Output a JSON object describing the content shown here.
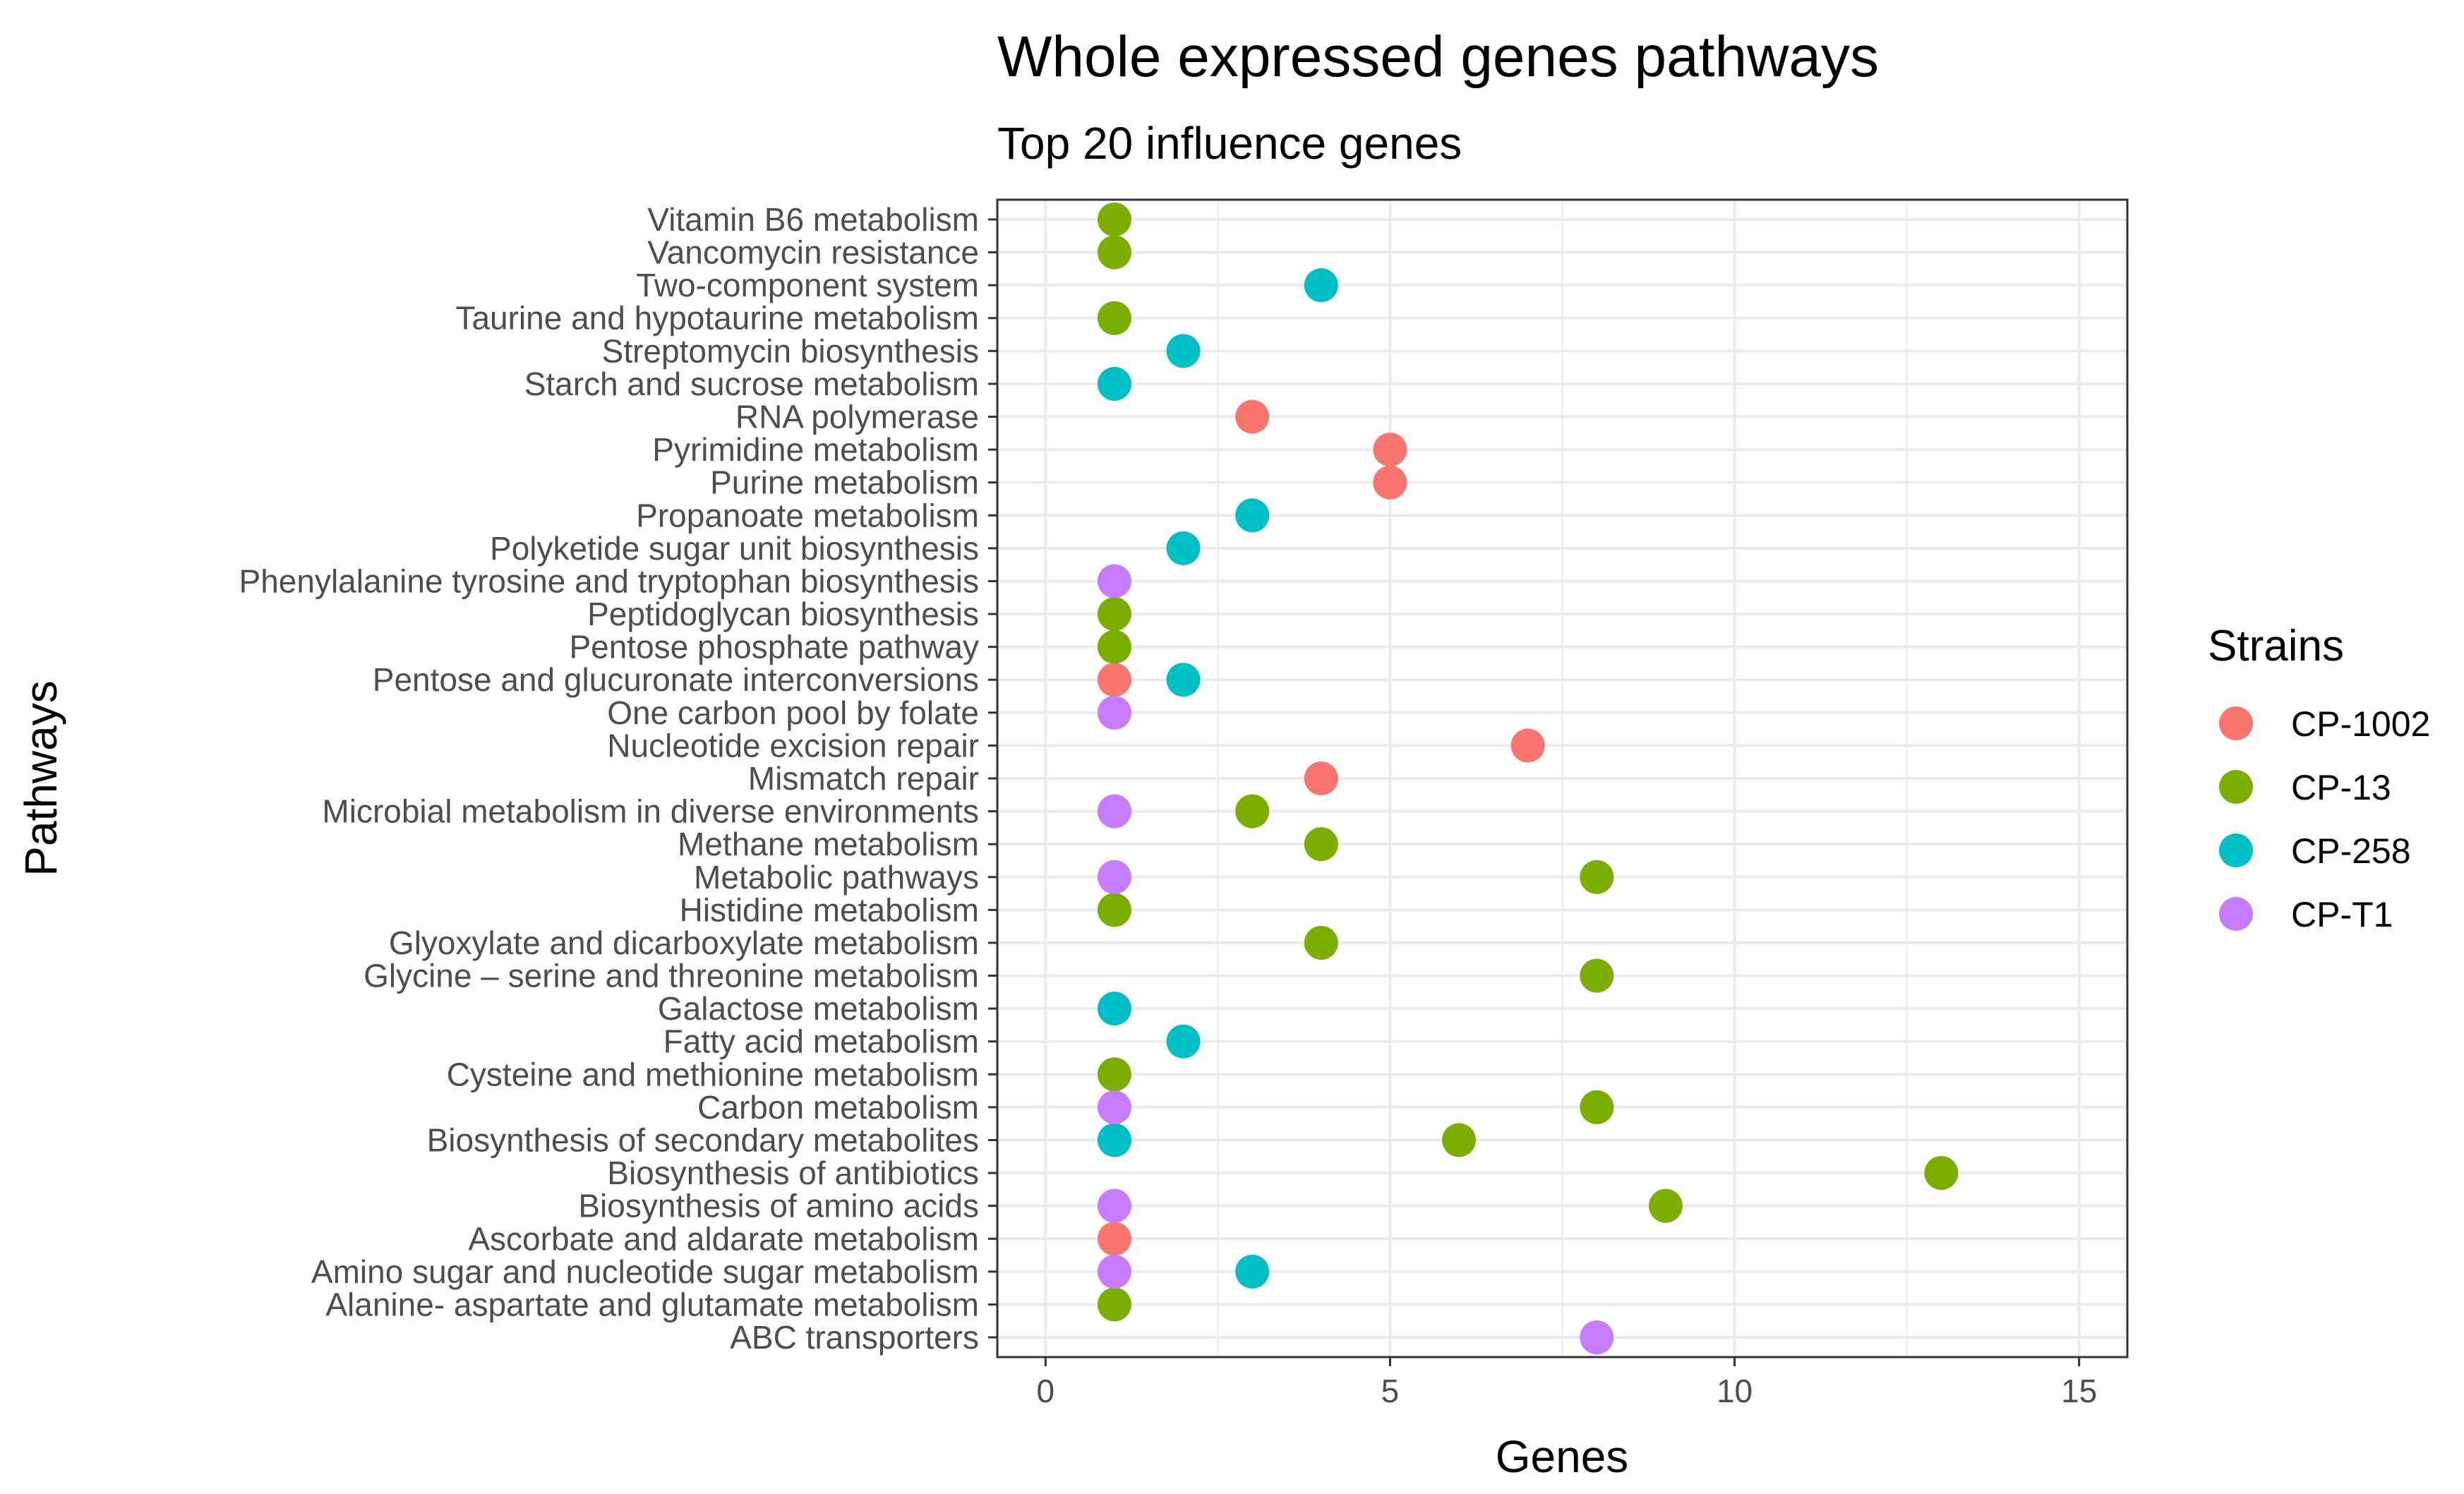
{
  "chart_data": {
    "type": "scatter",
    "title": "Whole expressed genes pathways",
    "subtitle": "Top 20 influence genes",
    "xlabel": "Genes",
    "ylabel": "Pathways",
    "xlim": [
      -0.7,
      15.7
    ],
    "xticks": [
      0,
      5,
      10,
      15
    ],
    "grid": true,
    "legend_position": "right",
    "legend": {
      "title": "Strains",
      "entries": [
        {
          "name": "CP-1002",
          "color": "#F8766D"
        },
        {
          "name": "CP-13",
          "color": "#7CAE00"
        },
        {
          "name": "CP-258",
          "color": "#00BFC4"
        },
        {
          "name": "CP-T1",
          "color": "#C77CFF"
        }
      ]
    },
    "categories": [
      "ABC transporters",
      "Alanine- aspartate and glutamate metabolism",
      "Amino sugar and nucleotide sugar metabolism",
      "Ascorbate and aldarate metabolism",
      "Biosynthesis of amino acids",
      "Biosynthesis of antibiotics",
      "Biosynthesis of secondary metabolites",
      "Carbon metabolism",
      "Cysteine and methionine metabolism",
      "Fatty acid metabolism",
      "Galactose metabolism",
      "Glycine – serine and threonine metabolism",
      "Glyoxylate and dicarboxylate metabolism",
      "Histidine metabolism",
      "Metabolic pathways",
      "Methane metabolism",
      "Microbial metabolism in diverse environments",
      "Mismatch repair",
      "Nucleotide excision repair",
      "One carbon pool by folate",
      "Pentose and glucuronate interconversions",
      "Pentose phosphate pathway",
      "Peptidoglycan biosynthesis",
      "Phenylalanine tyrosine and tryptophan biosynthesis",
      "Polyketide sugar unit biosynthesis",
      "Propanoate metabolism",
      "Purine metabolism",
      "Pyrimidine metabolism",
      "RNA polymerase",
      "Starch and sucrose metabolism",
      "Streptomycin biosynthesis",
      "Taurine and hypotaurine metabolism",
      "Two-component system",
      "Vancomycin resistance",
      "Vitamin B6 metabolism"
    ],
    "series": [
      {
        "name": "CP-1002",
        "points": [
          {
            "pathway": "Ascorbate and aldarate metabolism",
            "genes": 1
          },
          {
            "pathway": "Mismatch repair",
            "genes": 4
          },
          {
            "pathway": "Nucleotide excision repair",
            "genes": 7
          },
          {
            "pathway": "Pentose and glucuronate interconversions",
            "genes": 1
          },
          {
            "pathway": "Purine metabolism",
            "genes": 5
          },
          {
            "pathway": "Pyrimidine metabolism",
            "genes": 5
          },
          {
            "pathway": "RNA polymerase",
            "genes": 3
          }
        ]
      },
      {
        "name": "CP-13",
        "points": [
          {
            "pathway": "Alanine- aspartate and glutamate metabolism",
            "genes": 1
          },
          {
            "pathway": "Biosynthesis of amino acids",
            "genes": 9
          },
          {
            "pathway": "Biosynthesis of antibiotics",
            "genes": 13
          },
          {
            "pathway": "Biosynthesis of secondary metabolites",
            "genes": 6
          },
          {
            "pathway": "Carbon metabolism",
            "genes": 8
          },
          {
            "pathway": "Cysteine and methionine metabolism",
            "genes": 1
          },
          {
            "pathway": "Glycine – serine and threonine metabolism",
            "genes": 8
          },
          {
            "pathway": "Glyoxylate and dicarboxylate metabolism",
            "genes": 4
          },
          {
            "pathway": "Histidine metabolism",
            "genes": 1
          },
          {
            "pathway": "Metabolic pathways",
            "genes": 8
          },
          {
            "pathway": "Methane metabolism",
            "genes": 4
          },
          {
            "pathway": "Microbial metabolism in diverse environments",
            "genes": 3
          },
          {
            "pathway": "Pentose phosphate pathway",
            "genes": 1
          },
          {
            "pathway": "Peptidoglycan biosynthesis",
            "genes": 1
          },
          {
            "pathway": "Taurine and hypotaurine metabolism",
            "genes": 1
          },
          {
            "pathway": "Vancomycin resistance",
            "genes": 1
          },
          {
            "pathway": "Vitamin B6 metabolism",
            "genes": 1
          }
        ]
      },
      {
        "name": "CP-258",
        "points": [
          {
            "pathway": "Amino sugar and nucleotide sugar metabolism",
            "genes": 3
          },
          {
            "pathway": "Biosynthesis of secondary metabolites",
            "genes": 1
          },
          {
            "pathway": "Fatty acid metabolism",
            "genes": 2
          },
          {
            "pathway": "Galactose metabolism",
            "genes": 1
          },
          {
            "pathway": "Pentose and glucuronate interconversions",
            "genes": 2
          },
          {
            "pathway": "Polyketide sugar unit biosynthesis",
            "genes": 2
          },
          {
            "pathway": "Propanoate metabolism",
            "genes": 3
          },
          {
            "pathway": "Starch and sucrose metabolism",
            "genes": 1
          },
          {
            "pathway": "Streptomycin biosynthesis",
            "genes": 2
          },
          {
            "pathway": "Two-component system",
            "genes": 4
          }
        ]
      },
      {
        "name": "CP-T1",
        "points": [
          {
            "pathway": "ABC transporters",
            "genes": 8
          },
          {
            "pathway": "Amino sugar and nucleotide sugar metabolism",
            "genes": 1
          },
          {
            "pathway": "Biosynthesis of amino acids",
            "genes": 1
          },
          {
            "pathway": "Carbon metabolism",
            "genes": 1
          },
          {
            "pathway": "Metabolic pathways",
            "genes": 1
          },
          {
            "pathway": "Microbial metabolism in diverse environments",
            "genes": 1
          },
          {
            "pathway": "One carbon pool by folate",
            "genes": 1
          },
          {
            "pathway": "Phenylalanine tyrosine and tryptophan biosynthesis",
            "genes": 1
          }
        ]
      }
    ]
  }
}
